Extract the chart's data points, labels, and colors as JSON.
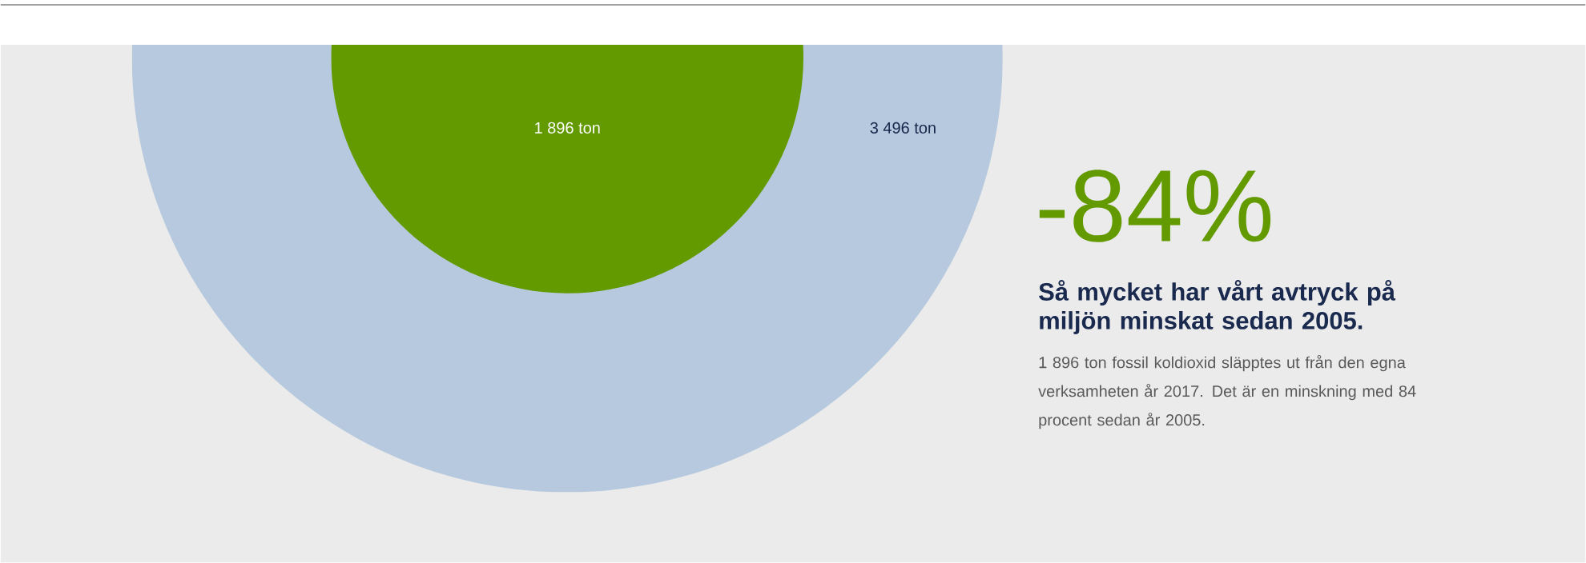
{
  "chart_data": {
    "type": "other",
    "title": "-84%",
    "subtitle": "Så mycket har vårt avtryck på miljön minskat sedan 2005.",
    "categories": [
      null,
      null
    ],
    "values": [
      1896,
      3496
    ],
    "value_labels": [
      "1 896 ton",
      "3 496 ton"
    ],
    "colors": [
      "#639a00",
      "#b7c9de"
    ],
    "annotations": [
      "1 896 ton fossil koldioxid släpptes ut från den egna verksamheten år 2017. Det är en minskning med 84 procent sedan år 2005."
    ]
  }
}
